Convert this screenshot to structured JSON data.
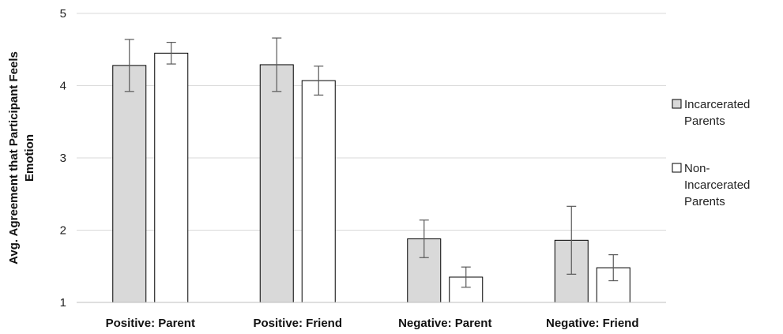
{
  "chart_data": {
    "type": "bar",
    "ylabel": "Avg. Agreement that Participant Feels Emotion",
    "ylabel_lines": [
      "Avg. Agreement that Participant Feels",
      "Emotion"
    ],
    "ylim": [
      1,
      5
    ],
    "yticks": [
      "1",
      "2",
      "3",
      "4",
      "5"
    ],
    "grid": true,
    "legend": "right",
    "categories": [
      "Positive: Parent",
      "Positive: Friend",
      "Negative: Parent",
      "Negative: Friend"
    ],
    "series": [
      {
        "name": "Incarcerated Parents",
        "legend_lines": [
          "Incarcerated",
          "Parents"
        ],
        "color": "#d9d9d9",
        "values": [
          4.28,
          4.29,
          1.88,
          1.86
        ],
        "error": [
          0.36,
          0.37,
          0.26,
          0.47
        ]
      },
      {
        "name": "Non-Incarcerated Parents",
        "legend_lines": [
          "Non-",
          "Incarcerated",
          "Parents"
        ],
        "color": "#ffffff",
        "values": [
          4.45,
          4.07,
          1.35,
          1.48
        ],
        "error": [
          0.15,
          0.2,
          0.14,
          0.18
        ]
      }
    ]
  }
}
